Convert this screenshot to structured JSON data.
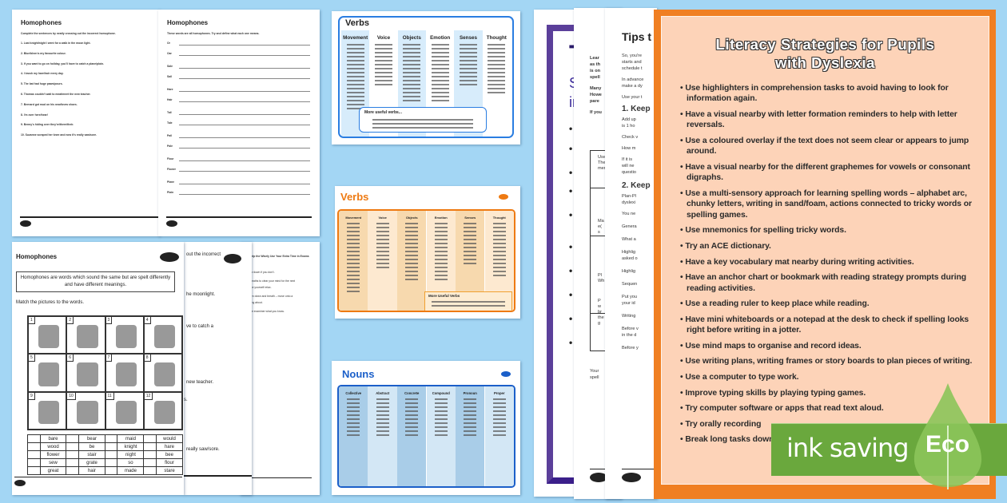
{
  "colors": {
    "background": "#a3d6f4",
    "poster_border": "#f07f22",
    "poster_fill": "#fdd3b8",
    "purple_frame": "#5b3f9a",
    "verbs_blue": "#2a7de1",
    "verbs_orange": "#ee7a12",
    "nouns_blue": "#1b5fc9",
    "eco_green": "#6aa83d"
  },
  "sheet1": {
    "title": "Homophones",
    "instruction": "Complete the sentences by neatly crossing out the incorrect homophone.",
    "sentences": [
      "1. Last knight/night I went for a walk in the moon light.",
      "2. Blue/blew is my favourite colour.",
      "3. If you want to go on holiday, you'll have to catch a plane/plain.",
      "4. I brush my hare/hair every day.",
      "5. The bat had huge paws/pours.",
      "6. Thomas couldn't wait to meat/meet the new teacher.",
      "7. Bernard got mud on his new/knew shoes.",
      "8. I'm over here/hear!",
      "9. Benny's hiding over they're/there/their.",
      "10. Suzanne scraped her knee and now it's really saw/sore."
    ]
  },
  "sheet2": {
    "title": "Homophones",
    "instruction": "These words are all homophones. Try and define what each one means.",
    "words": [
      "Or",
      "Oar",
      "Sale",
      "Sail",
      "Hare",
      "Hair",
      "Tail",
      "Tale",
      "Pail",
      "Pale",
      "Flour",
      "Flower",
      "Plane",
      "Plain"
    ]
  },
  "match": {
    "title": "Homophones",
    "definition": "Homophones are words which sound the same but are spelt differently and have different meanings.",
    "instruction": "Match the pictures to the words.",
    "logo": "twinkl",
    "pictures": [
      {
        "n": "1",
        "icon": "bear"
      },
      {
        "n": "2",
        "icon": "knight"
      },
      {
        "n": "3",
        "icon": "mail"
      },
      {
        "n": "4",
        "icon": "night"
      },
      {
        "n": "5",
        "icon": "maid"
      },
      {
        "n": "6",
        "icon": "hare"
      },
      {
        "n": "7",
        "icon": "mail-envelope"
      },
      {
        "n": "8",
        "icon": "bee"
      },
      {
        "n": "9",
        "icon": "stair"
      },
      {
        "n": "10",
        "icon": "wood"
      },
      {
        "n": "11",
        "icon": "flower"
      },
      {
        "n": "12",
        "icon": "grate"
      }
    ],
    "words": [
      [
        "bare",
        "bear",
        "maid",
        "would"
      ],
      [
        "wood",
        "be",
        "knight",
        "hare"
      ],
      [
        "flower",
        "stair",
        "night",
        "bee"
      ],
      [
        "sew",
        "grate",
        "so",
        "flour"
      ],
      [
        "great",
        "hair",
        "made",
        "stare"
      ]
    ]
  },
  "behind_sheet": {
    "logo": "twinkl",
    "fragments": [
      "out the incorrect",
      "he moonlight.",
      "ve to catch a",
      "new teacher.",
      "s.",
      "really saw/sore."
    ]
  },
  "exam_sheet": {
    "fragments": [
      "Help the Wisely Use Your Extra Time in Exams",
      "ew down if you don't.",
      "breaths to clear your mind for the next",
      "ake yourself relax.",
      "pen down and breath – move onto a",
      "king about.",
      "the examiner what you know."
    ]
  },
  "verbs_blue": {
    "title": "Verbs",
    "columns": [
      "Movement",
      "Voice",
      "Objects",
      "Emotion",
      "Senses",
      "Thought"
    ],
    "more": "More useful verbs..."
  },
  "verbs_orange": {
    "title": "Verbs",
    "columns": [
      "Movement",
      "Voice",
      "Objects",
      "Emotion",
      "Senses",
      "Thought"
    ],
    "more": "More Useful Verbs"
  },
  "nouns": {
    "title": "Nouns",
    "columns": [
      "Collective",
      "Abstract",
      "Concrete",
      "Compound",
      "Pronoun",
      "Proper"
    ]
  },
  "purple_doc": {
    "title": "T",
    "subtitle": [
      "Su",
      "in"
    ],
    "bullets": [
      "S",
      "F",
      "A",
      "A",
      "I",
      "C",
      "T",
      "D",
      "D",
      "T"
    ]
  },
  "doc2": {
    "lines": [
      "Lear",
      "as th",
      "is on",
      "spell",
      "Many",
      "Howe",
      "pare",
      "If you"
    ],
    "table": [
      "Use",
      "The",
      "men",
      "Ma",
      "e(",
      "s",
      "Pl",
      "Wh",
      "P",
      "w",
      "br",
      "the",
      "g"
    ],
    "after": [
      "Your",
      "spell"
    ],
    "logo": "twinkl"
  },
  "doc3": {
    "title": "Tips t",
    "lines": [
      "So, you're",
      "starts and",
      "schedule t",
      "In advance",
      "make a dy",
      "Use your t"
    ],
    "h1": "1. Keep",
    "list1": [
      "Add up",
      "is 1 ho",
      "Check v",
      "How m",
      "If it is",
      "will ne",
      "questio"
    ],
    "h2": "2. Keep",
    "list2": [
      "Plan-Pl",
      "dyslexi",
      "You ne"
    ],
    "rest": [
      "Genera",
      "What a",
      "Highlig",
      "asked o",
      "Highlig",
      "Sequen",
      "Put you",
      "your id",
      "Writing",
      "Before v",
      "in the d",
      "Before y"
    ],
    "logo": "twinkl"
  },
  "poster": {
    "title_line1": "Literacy Strategies for Pupils",
    "title_line2": "with Dyslexia",
    "items": [
      "Use highlighters in comprehension tasks to avoid having to look for information again.",
      "Have a visual nearby with letter formation reminders to help with letter reversals.",
      "Use a coloured overlay if the text does not seem clear or appears to jump around.",
      "Have a visual nearby for the different graphemes for vowels or consonant digraphs.",
      "Use a multi-sensory approach for learning spelling words – alphabet arc, chunky letters, writing in sand/foam, actions connected to tricky words or spelling games.",
      "Use mnemonics for spelling tricky words.",
      "Try an ACE dictionary.",
      "Have a key vocabulary mat nearby during writing activities.",
      "Have an anchor chart or bookmark with reading strategy prompts during reading activities.",
      "Use a reading ruler to keep place while reading.",
      "Have mini whiteboards or a notepad at the desk to check if spelling looks right before writing in a jotter.",
      "Use mind maps to organise and record ideas.",
      "Use writing plans, writing frames or story boards to plan pieces of writing.",
      "Use a computer to type work.",
      "Improve typing skills by playing typing games.",
      "Try computer software or apps that read text aloud.",
      "Try orally recording",
      "Break long tasks down"
    ]
  },
  "eco_badge": {
    "label": "ink saving",
    "tag": "Eco"
  }
}
